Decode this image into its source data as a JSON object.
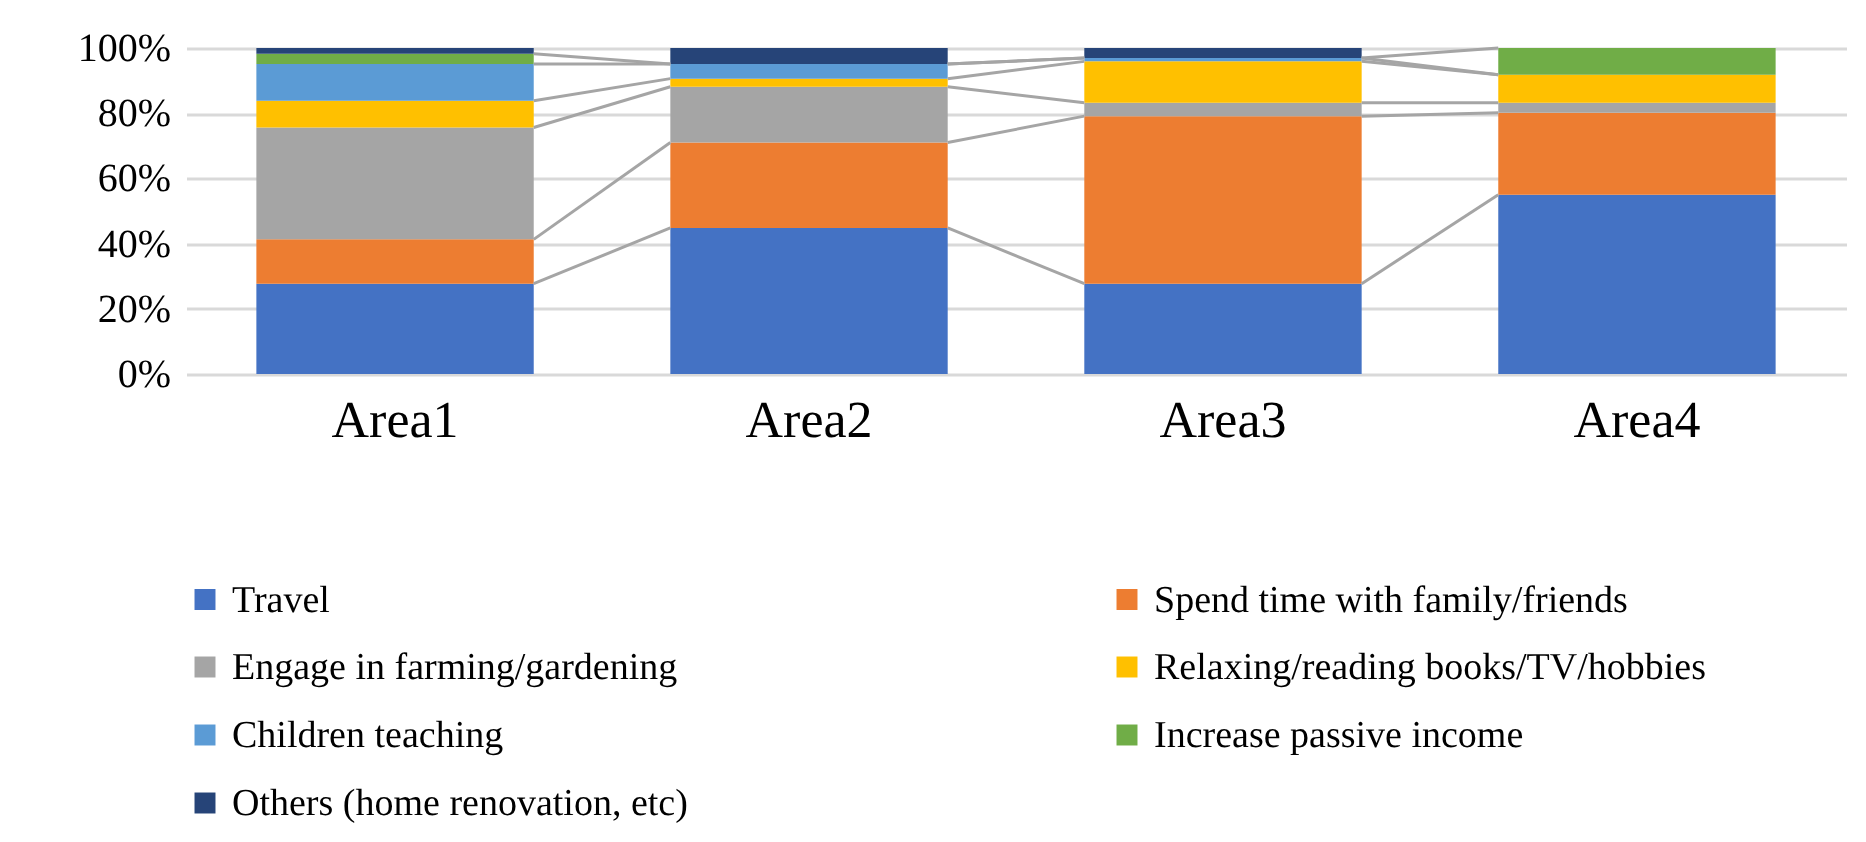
{
  "chart_data": {
    "type": "bar",
    "stacked": true,
    "categories": [
      "Area1",
      "Area2",
      "Area3",
      "Area4"
    ],
    "series": [
      {
        "name": "Travel",
        "color": "#4472c4",
        "values": [
          27.7,
          44.8,
          27.7,
          55.0
        ]
      },
      {
        "name": "Spend time with family/friends",
        "color": "#ed7d31",
        "values": [
          13.6,
          26.2,
          51.4,
          25.1
        ]
      },
      {
        "name": "Engage in farming/gardening",
        "color": "#a5a5a5",
        "values": [
          34.3,
          17.1,
          4.1,
          3.1
        ]
      },
      {
        "name": "Relaxing/reading books/TV/hobbies",
        "color": "#ffc000",
        "values": [
          8.2,
          2.5,
          12.7,
          8.6
        ]
      },
      {
        "name": "Children teaching",
        "color": "#5b9bd5",
        "values": [
          11.3,
          4.5,
          1.0,
          0
        ]
      },
      {
        "name": "Increase passive income",
        "color": "#70ad47",
        "values": [
          3.1,
          0,
          0,
          8.2
        ]
      },
      {
        "name": "Others (home renovation, etc)",
        "color": "#264478",
        "values": [
          1.8,
          4.9,
          3.1,
          0
        ]
      }
    ],
    "ylim": [
      0,
      100
    ],
    "yticks": [
      {
        "value": 0,
        "label": "0%"
      },
      {
        "value": 20,
        "label": "20%"
      },
      {
        "value": 40,
        "label": "40%"
      },
      {
        "value": 60,
        "label": "60%"
      },
      {
        "value": 80,
        "label": "80%"
      },
      {
        "value": 100,
        "label": "100%"
      }
    ],
    "grid": "y",
    "legend": "bottom"
  }
}
